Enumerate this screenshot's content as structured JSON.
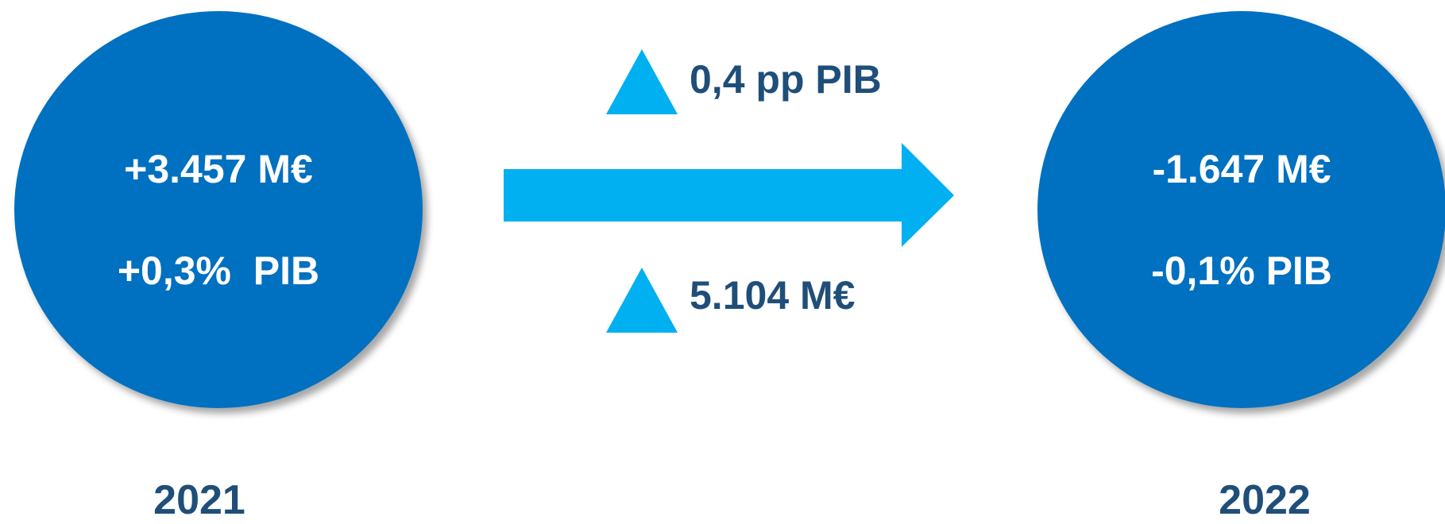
{
  "colors": {
    "circle_fill": "#0070c0",
    "accent": "#00b0f0",
    "label_text": "#1f4e79",
    "circle_text": "#ffffff"
  },
  "left": {
    "amount": "+3.457 M€",
    "pib": "+0,3%  PIB",
    "year": "2021"
  },
  "right": {
    "amount": "-1.647 M€",
    "pib": "-0,1% PIB",
    "year": "2022"
  },
  "change": {
    "pib_delta": "0,4 pp PIB",
    "amount_delta": "5.104 M€",
    "indicator_icon": "triangle-up-icon",
    "transition_icon": "arrow-right-icon"
  }
}
